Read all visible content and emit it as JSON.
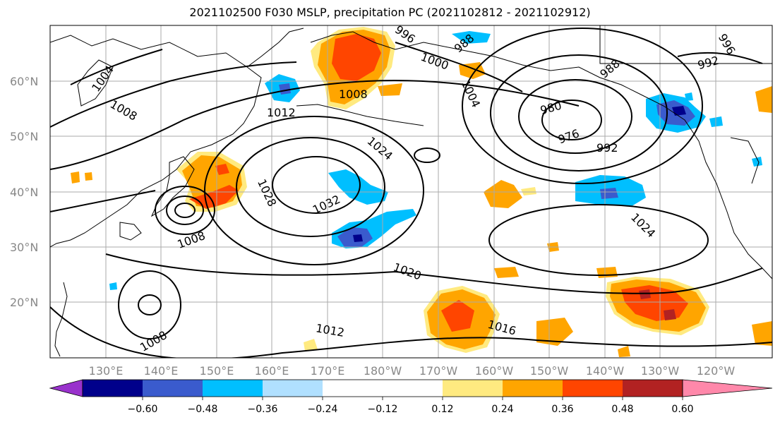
{
  "title": "2021102500 F030 MSLP, precipitation PC (2021102812 - 2021102912)",
  "map": {
    "lat_labels": [
      "60°N",
      "50°N",
      "40°N",
      "30°N",
      "20°N"
    ],
    "lon_labels": [
      "130°E",
      "140°E",
      "150°E",
      "160°E",
      "170°E",
      "180°W",
      "170°W",
      "160°W",
      "150°W",
      "140°W",
      "130°W",
      "120°W"
    ],
    "isobar_labels": [
      "1004",
      "1008",
      "1012",
      "1008",
      "996",
      "988",
      "1000",
      "1004",
      "980",
      "976",
      "988",
      "992",
      "996",
      "992",
      "1024",
      "1028",
      "1032",
      "1008",
      "1020",
      "1024",
      "1008",
      "1012",
      "1016"
    ]
  },
  "colorbar": {
    "ticks": [
      "−0.60",
      "−0.48",
      "−0.36",
      "−0.24",
      "−0.12",
      "0.12",
      "0.24",
      "0.36",
      "0.48",
      "0.60"
    ],
    "colors": [
      "#9932cc",
      "#00008b",
      "#3a5bcd",
      "#00bfff",
      "#b0e0ff",
      "#ffffff",
      "#ffea80",
      "#ffa500",
      "#ff4500",
      "#b22222",
      "#ff88aa"
    ]
  },
  "colors": {
    "land_line": "#000000",
    "grid": "#aaaaaa",
    "axis_label": "#888888"
  }
}
